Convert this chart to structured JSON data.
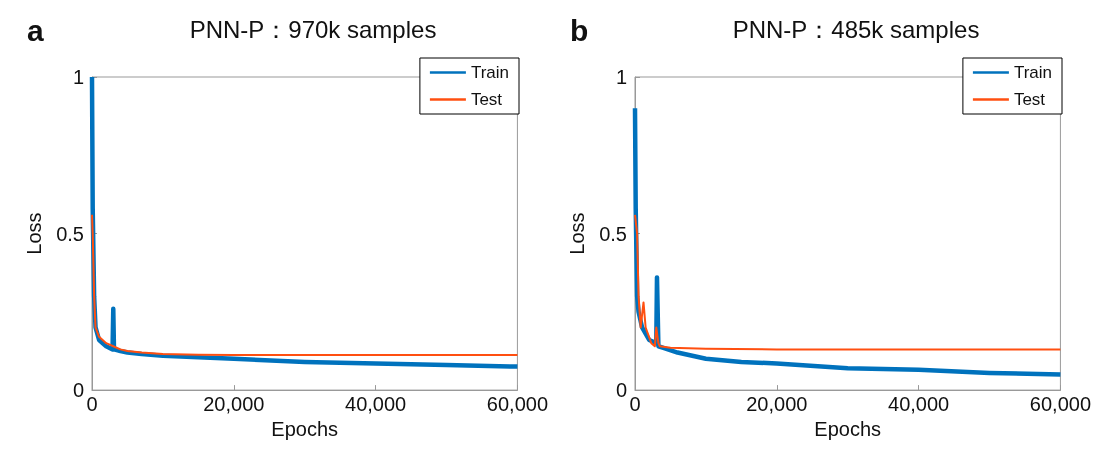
{
  "chart_data": [
    {
      "type": "line",
      "title": "PNN-P：970k samples",
      "xlabel": "Epochs",
      "ylabel": "Loss",
      "annotations": [
        "a"
      ],
      "xlim": [
        0,
        60000
      ],
      "xticks": [
        0,
        {
          "value": 20000,
          "label": "20,000"
        },
        {
          "value": 40000,
          "label": "40,000"
        },
        {
          "value": 60000,
          "label": "60,000"
        }
      ],
      "ylim": [
        0,
        1
      ],
      "yticks": [
        0,
        0.5,
        1
      ],
      "grid": false,
      "legend": "top right",
      "marker": "none",
      "line_style": "solid",
      "series": [
        {
          "name": "Train",
          "color": "#0072bd",
          "x": [
            0,
            100,
            300,
            500,
            1000,
            2000,
            2900,
            3000,
            3100,
            4000,
            5000,
            7000,
            10000,
            15000,
            20000,
            30000,
            40000,
            50000,
            60000
          ],
          "values": [
            1,
            0.58,
            0.3,
            0.2,
            0.16,
            0.14,
            0.13,
            0.26,
            0.13,
            0.125,
            0.12,
            0.115,
            0.11,
            0.105,
            0.1,
            0.09,
            0.085,
            0.08,
            0.075
          ]
        },
        {
          "name": "Test",
          "color": "#ff4f10",
          "x": [
            0,
            100,
            300,
            500,
            1000,
            2000,
            3000,
            4000,
            5000,
            7000,
            10000,
            15000,
            20000,
            30000,
            40000,
            50000,
            60000
          ],
          "values": [
            0.56,
            0.5,
            0.3,
            0.2,
            0.17,
            0.15,
            0.14,
            0.13,
            0.125,
            0.12,
            0.115,
            0.113,
            0.112,
            0.112,
            0.112,
            0.112,
            0.112
          ]
        }
      ]
    },
    {
      "type": "line",
      "title": "PNN-P：485k samples",
      "xlabel": "Epochs",
      "ylabel": "Loss",
      "annotations": [
        "b"
      ],
      "xlim": [
        0,
        60000
      ],
      "xticks": [
        0,
        {
          "value": 20000,
          "label": "20,000"
        },
        {
          "value": 40000,
          "label": "40,000"
        },
        {
          "value": 60000,
          "label": "60,000"
        }
      ],
      "ylim": [
        0,
        1
      ],
      "yticks": [
        0,
        0.5,
        1
      ],
      "grid": false,
      "legend": "top right",
      "marker": "none",
      "line_style": "solid",
      "series": [
        {
          "name": "Train",
          "color": "#0072bd",
          "x": [
            0,
            100,
            300,
            500,
            1000,
            2000,
            3000,
            3100,
            3300,
            4000,
            6000,
            10000,
            15000,
            20000,
            30000,
            40000,
            50000,
            60000
          ],
          "values": [
            0.9,
            0.58,
            0.3,
            0.25,
            0.2,
            0.16,
            0.15,
            0.36,
            0.14,
            0.135,
            0.12,
            0.1,
            0.09,
            0.085,
            0.07,
            0.065,
            0.055,
            0.05
          ]
        },
        {
          "name": "Test",
          "color": "#ff4f10",
          "x": [
            0,
            300,
            500,
            800,
            1200,
            1500,
            2300,
            2800,
            3000,
            3300,
            3500,
            5000,
            10000,
            20000,
            30000,
            40000,
            50000,
            60000
          ],
          "values": [
            0.56,
            0.5,
            0.3,
            0.2,
            0.28,
            0.2,
            0.15,
            0.14,
            0.2,
            0.15,
            0.14,
            0.135,
            0.132,
            0.13,
            0.13,
            0.13,
            0.13,
            0.13
          ]
        }
      ]
    }
  ]
}
